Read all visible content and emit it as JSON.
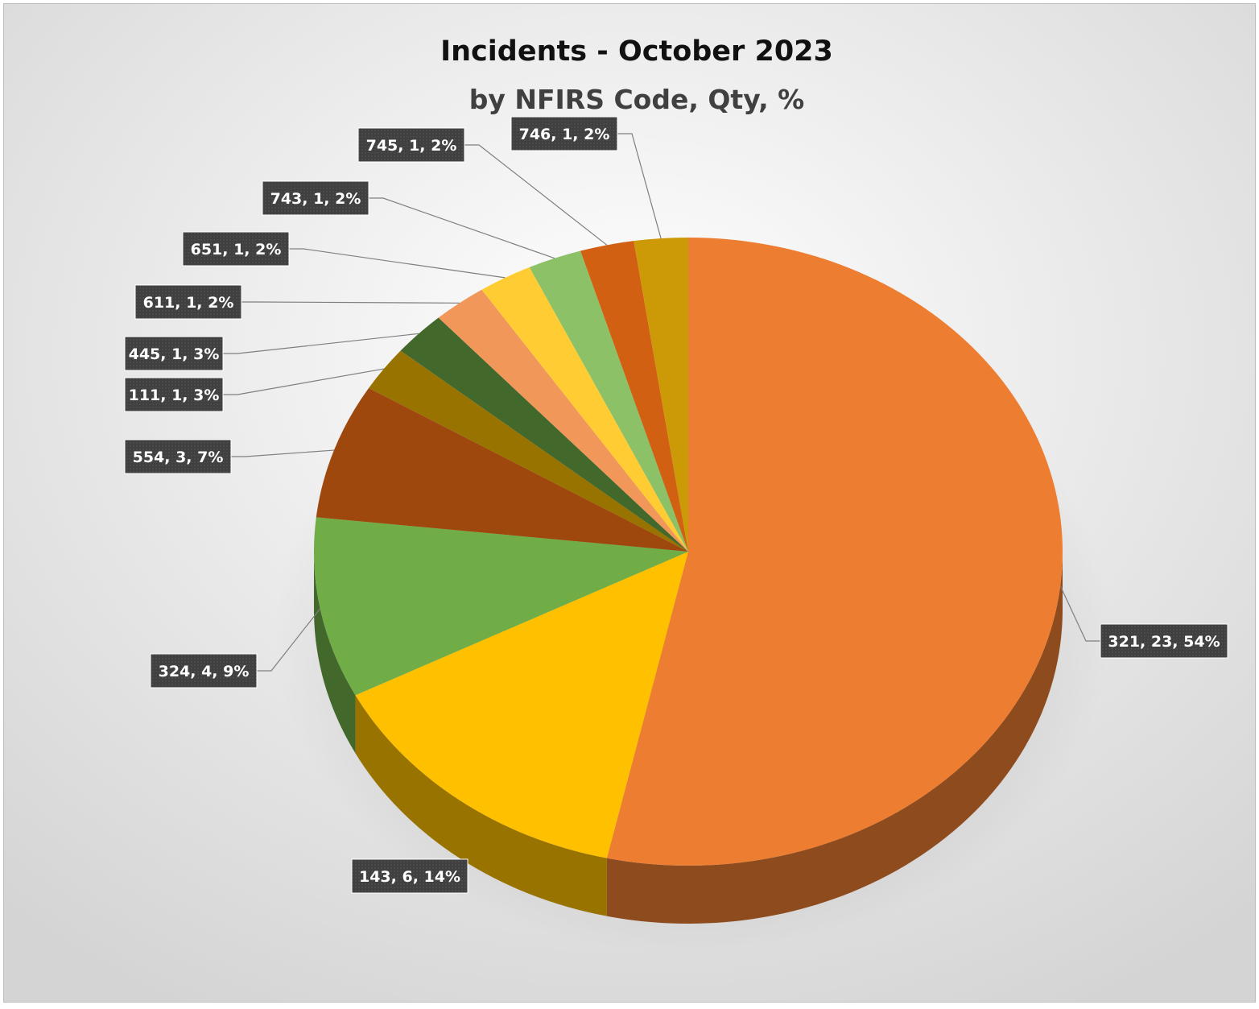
{
  "chart_data": {
    "type": "pie",
    "style": "3d",
    "title": "Incidents - October 2023",
    "subtitle": "by NFIRS Code, Qty, %",
    "slices": [
      {
        "code": "321",
        "qty": 23,
        "label": "321, 23, 54%",
        "color": "#ED7D31"
      },
      {
        "code": "143",
        "qty": 6,
        "label": "143, 6, 14%",
        "color": "#FFC000"
      },
      {
        "code": "324",
        "qty": 4,
        "label": "324, 4, 9%",
        "color": "#70AD47"
      },
      {
        "code": "554",
        "qty": 3,
        "label": "554, 3, 7%",
        "color": "#9E480E"
      },
      {
        "code": "111",
        "qty": 1,
        "label": "111, 1, 3%",
        "color": "#997300"
      },
      {
        "code": "445",
        "qty": 1,
        "label": "445, 1, 3%",
        "color": "#43682B"
      },
      {
        "code": "611",
        "qty": 1,
        "label": "611, 1, 2%",
        "color": "#F1975A"
      },
      {
        "code": "651",
        "qty": 1,
        "label": "651, 1, 2%",
        "color": "#FFCD33"
      },
      {
        "code": "743",
        "qty": 1,
        "label": "743, 1, 2%",
        "color": "#8CC168"
      },
      {
        "code": "745",
        "qty": 1,
        "label": "745, 1, 2%",
        "color": "#D26012"
      },
      {
        "code": "746",
        "qty": 1,
        "label": "746, 1, 2%",
        "color": "#CC9A06"
      }
    ]
  }
}
